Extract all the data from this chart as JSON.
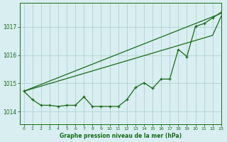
{
  "title": "Graphe pression niveau de la mer (hPa)",
  "bg_color": "#d8eef0",
  "line_color": "#1a6b1a",
  "grid_color": "#aacccc",
  "ylim": [
    1013.55,
    1017.85
  ],
  "xlim": [
    -0.5,
    23
  ],
  "yticks": [
    1014,
    1015,
    1016,
    1017
  ],
  "xticks": [
    0,
    1,
    2,
    3,
    4,
    5,
    6,
    7,
    8,
    9,
    10,
    11,
    12,
    13,
    14,
    15,
    16,
    17,
    18,
    19,
    20,
    21,
    22,
    23
  ],
  "hours": [
    0,
    1,
    2,
    3,
    4,
    5,
    6,
    7,
    8,
    9,
    10,
    11,
    12,
    13,
    14,
    15,
    16,
    17,
    18,
    19,
    20,
    21,
    22,
    23
  ],
  "line_measured": [
    1014.72,
    1014.42,
    1014.22,
    1014.22,
    1014.18,
    1014.22,
    1014.22,
    1014.52,
    1014.18,
    1014.18,
    1014.18,
    1014.18,
    1014.42,
    1014.85,
    1015.02,
    1014.82,
    1015.15,
    1015.15,
    1016.2,
    1015.95,
    1017.02,
    1017.12,
    1017.32,
    1017.52
  ],
  "line_straight1": [
    1014.72,
    1014.84,
    1014.96,
    1015.08,
    1015.2,
    1015.32,
    1015.44,
    1015.56,
    1015.68,
    1015.8,
    1015.92,
    1016.04,
    1016.16,
    1016.28,
    1016.4,
    1016.52,
    1016.64,
    1016.76,
    1016.88,
    1017.0,
    1017.12,
    1017.24,
    1017.36,
    1017.48
  ],
  "line_straight2": [
    1014.72,
    1014.81,
    1014.9,
    1014.99,
    1015.08,
    1015.17,
    1015.26,
    1015.35,
    1015.44,
    1015.53,
    1015.62,
    1015.71,
    1015.8,
    1015.89,
    1015.98,
    1016.07,
    1016.16,
    1016.25,
    1016.34,
    1016.43,
    1016.52,
    1016.61,
    1016.7,
    1017.38
  ],
  "figsize": [
    3.2,
    2.0
  ],
  "dpi": 100
}
